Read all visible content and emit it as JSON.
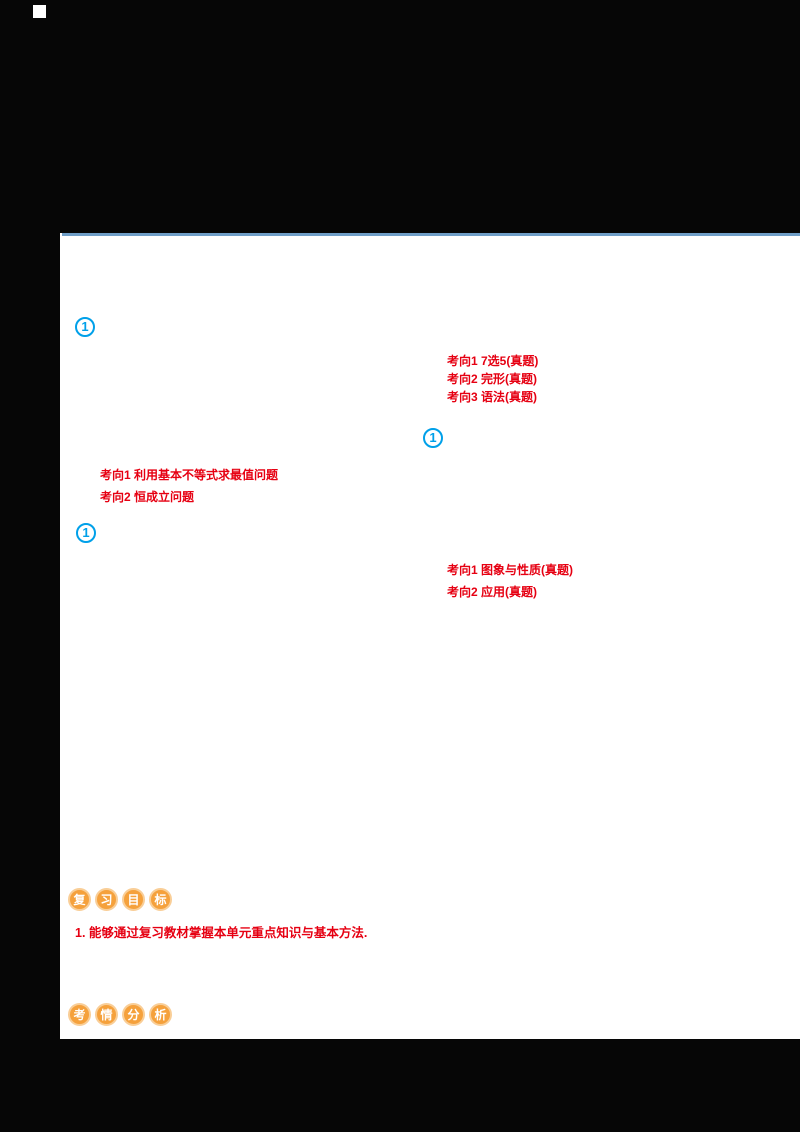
{
  "colors": {
    "red": "#e60012",
    "marker_blue": "#00a0e9",
    "badge_orange": "#f5a13c",
    "divider_blue": "#6f9ec7",
    "paper": "#ffffff",
    "background": "#060606"
  },
  "markers": [
    {
      "label": "1"
    },
    {
      "label": "1"
    },
    {
      "label": "1"
    }
  ],
  "annotations": {
    "block_a": [
      "考向1 7选5(真题)",
      "考向2 完形(真题)",
      "考向3 语法(真题)"
    ],
    "block_b": [
      "考向1 利用基本不等式求最值问题",
      "考向2 恒成立问题"
    ],
    "block_c": [
      "考向1 图象与性质(真题)",
      "考向2 应用(真题)"
    ]
  },
  "badges": {
    "review_goals": {
      "chars": [
        "复",
        "习",
        "目",
        "标"
      ]
    },
    "exam_analysis": {
      "chars": [
        "考",
        "情",
        "分",
        "析"
      ]
    }
  },
  "objectives": {
    "line1": "1. 能够通过复习教材掌握本单元重点知识与基本方法."
  }
}
